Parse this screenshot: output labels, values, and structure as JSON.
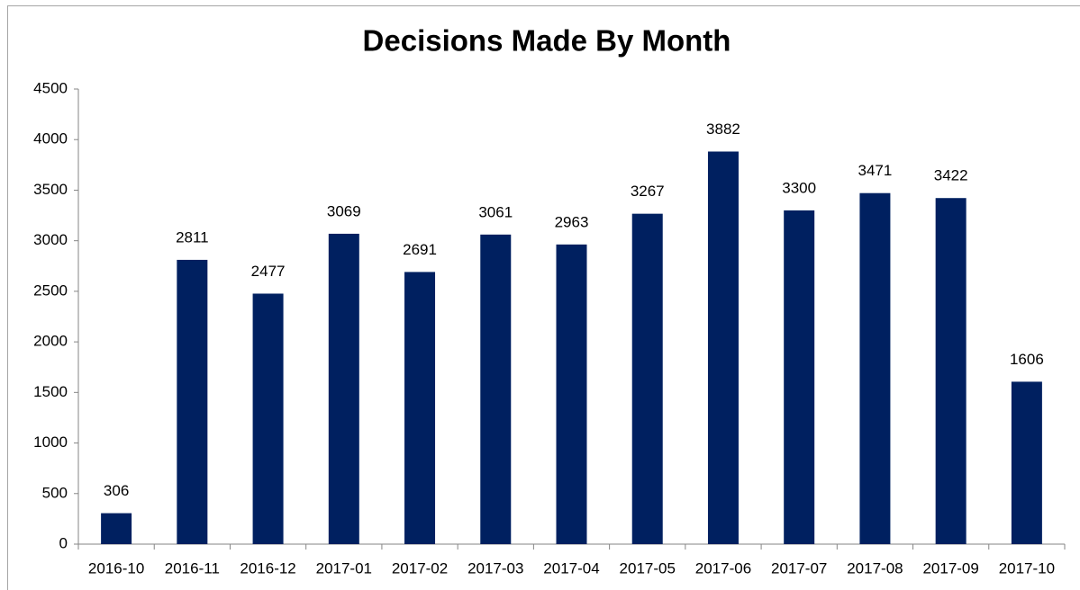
{
  "chart_data": {
    "type": "bar",
    "title": "Decisions Made By Month",
    "categories": [
      "2016-10",
      "2016-11",
      "2016-12",
      "2017-01",
      "2017-02",
      "2017-03",
      "2017-04",
      "2017-05",
      "2017-06",
      "2017-07",
      "2017-08",
      "2017-09",
      "2017-10"
    ],
    "values": [
      306,
      2811,
      2477,
      3069,
      2691,
      3061,
      2963,
      3267,
      3882,
      3300,
      3471,
      3422,
      1606
    ],
    "color": "#002060",
    "ylim": [
      0,
      4500
    ],
    "yticks": [
      0,
      500,
      1000,
      1500,
      2000,
      2500,
      3000,
      3500,
      4000,
      4500
    ],
    "grid": false,
    "data_labels": true
  }
}
